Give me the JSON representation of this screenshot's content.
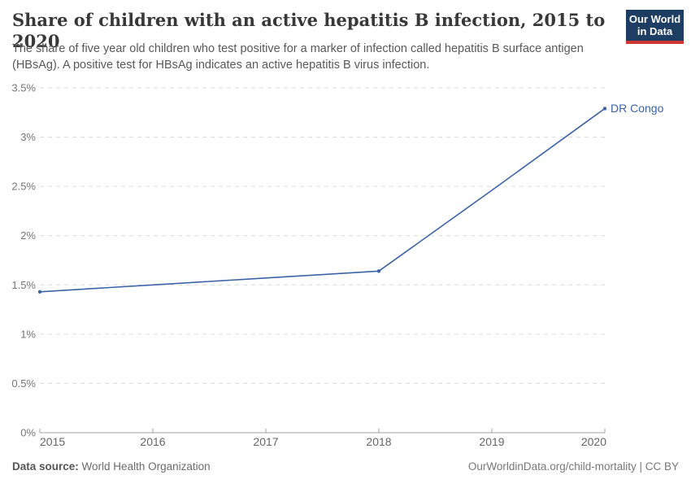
{
  "header": {
    "title": "Share of children with an active hepatitis B infection, 2015 to 2020",
    "subtitle": "The share of five year old children who test positive for a marker of infection called hepatitis B surface antigen (HBsAg). A positive test for HBsAg indicates an active hepatitis B virus infection.",
    "logo": {
      "line1": "Our World",
      "line2": "in Data"
    }
  },
  "footer": {
    "source_label": "Data source:",
    "source_value": "World Health Organization",
    "right_text": "OurWorldinData.org/child-mortality | CC BY"
  },
  "colors": {
    "line": "#3a63a8",
    "entity_label": "#3a63a8",
    "grid": "#dcdcdc",
    "axis": "#a1a1a1",
    "y_tick_label": "#757575",
    "x_tick_label": "#666666",
    "logo_bg": "#1d3d63",
    "logo_red": "#cd3731"
  },
  "chart_data": {
    "type": "line",
    "title": "Share of children with an active hepatitis B infection, 2015 to 2020",
    "x": [
      2015,
      2016,
      2017,
      2018,
      2019,
      2020
    ],
    "x_tick_labels": [
      "2015",
      "2016",
      "2017",
      "2018",
      "2019",
      "2020"
    ],
    "series": [
      {
        "name": "DR Congo",
        "values": [
          1.43,
          1.5,
          1.57,
          1.64,
          2.46,
          3.29
        ]
      }
    ],
    "marker_years": [
      2015,
      2018,
      2020
    ],
    "xlabel": "",
    "ylabel": "",
    "ylim": [
      0,
      3.5
    ],
    "yticks": [
      0,
      0.5,
      1,
      1.5,
      2,
      2.5,
      3,
      3.5
    ],
    "ytick_labels": [
      "0%",
      "0.5%",
      "1%",
      "1.5%",
      "2%",
      "2.5%",
      "3%",
      "3.5%"
    ],
    "grid": "horizontal-dashed",
    "legend": "end-of-line-label"
  }
}
